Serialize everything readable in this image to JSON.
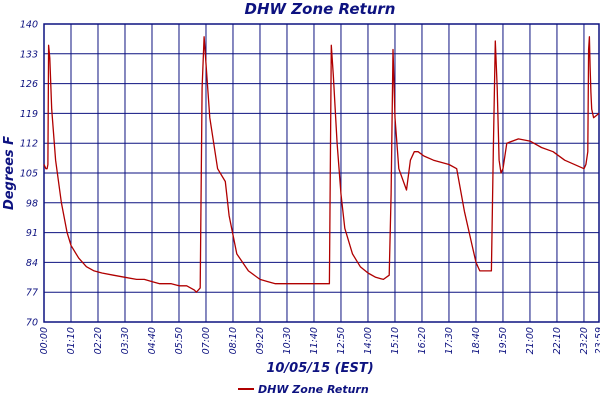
{
  "chart_data": {
    "type": "line",
    "title": "DHW Zone Return",
    "xlabel": "10/05/15 (EST)",
    "ylabel": "Degrees F",
    "ylim": [
      70,
      140
    ],
    "yticks": [
      70,
      77,
      84,
      91,
      98,
      105,
      112,
      119,
      126,
      133,
      140
    ],
    "xlim": [
      "00:00",
      "23:59"
    ],
    "xtick_labels": [
      "00:00",
      "01:10",
      "02:20",
      "03:30",
      "04:40",
      "05:50",
      "07:00",
      "08:10",
      "09:20",
      "10:30",
      "11:40",
      "12:50",
      "14:00",
      "15:10",
      "16:20",
      "17:30",
      "18:40",
      "19:50",
      "21:00",
      "22:10",
      "23:20",
      "23:59"
    ],
    "grid": true,
    "legend_position": "bottom-center",
    "colors": {
      "series": "#b00000",
      "grid": "#0d1280",
      "text": "#0d1280"
    },
    "series": [
      {
        "name": "DHW Zone Return",
        "x": [
          "00:00",
          "00:05",
          "00:08",
          "00:10",
          "00:12",
          "00:15",
          "00:20",
          "00:30",
          "00:45",
          "01:00",
          "01:10",
          "01:30",
          "01:50",
          "02:10",
          "02:30",
          "03:00",
          "03:30",
          "04:00",
          "04:20",
          "04:40",
          "05:00",
          "05:30",
          "05:50",
          "06:10",
          "06:30",
          "06:35",
          "06:40",
          "06:45",
          "06:50",
          "06:55",
          "07:10",
          "07:30",
          "07:50",
          "08:00",
          "08:20",
          "08:50",
          "09:20",
          "09:40",
          "10:00",
          "10:30",
          "11:00",
          "11:35",
          "12:15",
          "12:20",
          "12:25",
          "12:30",
          "12:40",
          "12:50",
          "13:00",
          "13:20",
          "13:40",
          "14:00",
          "14:20",
          "14:40",
          "14:55",
          "15:00",
          "15:05",
          "15:10",
          "15:20",
          "15:40",
          "15:50",
          "16:00",
          "16:10",
          "16:25",
          "16:50",
          "17:10",
          "17:30",
          "17:50",
          "18:10",
          "18:30",
          "18:40",
          "18:50",
          "19:20",
          "19:25",
          "19:30",
          "19:35",
          "19:40",
          "19:45",
          "19:50",
          "20:00",
          "20:30",
          "21:00",
          "21:30",
          "22:00",
          "22:30",
          "23:20",
          "23:25",
          "23:30",
          "23:32",
          "23:34",
          "23:36",
          "23:38",
          "23:40",
          "23:45",
          "23:59"
        ],
        "y": [
          107,
          106,
          106,
          107,
          135,
          132,
          120,
          108,
          98,
          91,
          88,
          85,
          83,
          82,
          81.5,
          81,
          80.5,
          80,
          80,
          79.5,
          79,
          79,
          78.5,
          78.5,
          77.5,
          77,
          77.5,
          78,
          125,
          137,
          118,
          106,
          103,
          95,
          86,
          82,
          80,
          79.5,
          79,
          79,
          79,
          79,
          79,
          79,
          135,
          128,
          112,
          100,
          92,
          86,
          83,
          81.5,
          80.5,
          80,
          81,
          100,
          134,
          118,
          106,
          101,
          108,
          110,
          110,
          109,
          108,
          107.5,
          107,
          106,
          96,
          88,
          84,
          82,
          82,
          110,
          136,
          125,
          108,
          105,
          106,
          112,
          113,
          112.5,
          111,
          110,
          108,
          106,
          107,
          110,
          134,
          137,
          130,
          124,
          120,
          118,
          119
        ]
      }
    ]
  }
}
